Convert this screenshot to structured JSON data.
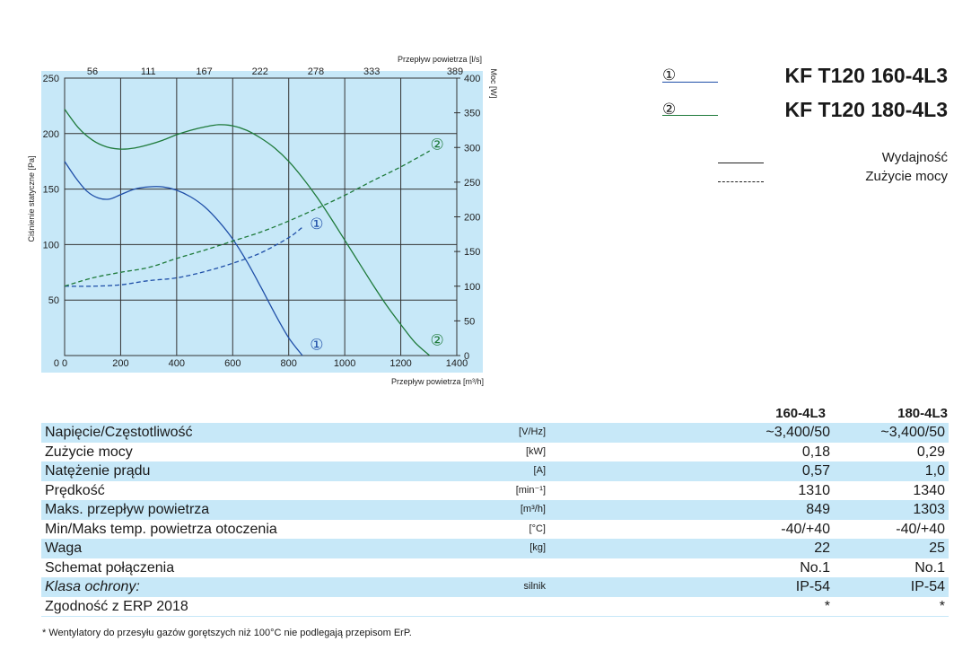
{
  "chart_data": {
    "type": "line",
    "x_unit_label": "Przepływ powietrza [m³/h]",
    "x_top_label": "Przepływ powietrza [l/s]",
    "y_left_label": "Ciśnienie statyczne [Pa]",
    "y_right_label": "Moc [W]",
    "xlim": [
      0,
      1400
    ],
    "ylim_left": [
      0,
      250
    ],
    "ylim_right": [
      0,
      400
    ],
    "x_ticks": [
      "0",
      "200",
      "400",
      "600",
      "800",
      "1000",
      "1200",
      "1400"
    ],
    "x_top_ticks": [
      "56",
      "111",
      "167",
      "222",
      "278",
      "333",
      "389"
    ],
    "y_left_ticks": [
      "50",
      "100",
      "150",
      "200",
      "250"
    ],
    "y_right_ticks": [
      "0",
      "50",
      "100",
      "150",
      "200",
      "250",
      "300",
      "350",
      "400"
    ],
    "series": [
      {
        "name": "①",
        "kind": "pressure",
        "color": "#1f4fa8",
        "x": [
          0,
          40,
          80,
          120,
          160,
          200,
          250,
          300,
          350,
          400,
          450,
          500,
          550,
          600,
          650,
          700,
          750,
          800,
          849
        ],
        "y": [
          175,
          160,
          148,
          142,
          141,
          145,
          150,
          152,
          152,
          149,
          143,
          134,
          121,
          105,
          85,
          62,
          38,
          16,
          0
        ]
      },
      {
        "name": "②",
        "kind": "pressure",
        "color": "#1e7a3a",
        "x": [
          0,
          50,
          100,
          150,
          200,
          250,
          300,
          350,
          400,
          450,
          500,
          550,
          600,
          650,
          700,
          750,
          800,
          850,
          900,
          950,
          1000,
          1050,
          1100,
          1150,
          1200,
          1250,
          1303
        ],
        "y": [
          222,
          205,
          194,
          188,
          186,
          187,
          190,
          194,
          199,
          203,
          206,
          208,
          207,
          203,
          196,
          187,
          175,
          160,
          143,
          124,
          104,
          84,
          64,
          45,
          28,
          12,
          0
        ]
      },
      {
        "name": "①",
        "kind": "power",
        "color": "#1f4fa8",
        "x": [
          0,
          100,
          200,
          300,
          400,
          500,
          600,
          700,
          800,
          849
        ],
        "y": [
          100,
          100,
          102,
          108,
          112,
          121,
          133,
          148,
          170,
          185
        ]
      },
      {
        "name": "②",
        "kind": "power",
        "color": "#1e7a3a",
        "x": [
          0,
          100,
          200,
          300,
          400,
          500,
          600,
          700,
          800,
          900,
          1000,
          1100,
          1200,
          1303
        ],
        "y": [
          100,
          112,
          120,
          127,
          140,
          152,
          165,
          178,
          194,
          212,
          231,
          252,
          272,
          295
        ]
      }
    ],
    "markers": [
      {
        "label": "①",
        "x": 900,
        "y_right": 190,
        "color": "#1f4fa8"
      },
      {
        "label": "①",
        "x": 900,
        "y_left": 10,
        "color": "#1f4fa8"
      },
      {
        "label": "②",
        "x": 1330,
        "y_right": 305,
        "color": "#1e7a3a"
      },
      {
        "label": "②",
        "x": 1330,
        "y_left": 14,
        "color": "#1e7a3a"
      }
    ],
    "grid": true,
    "background": "#c7e8f8"
  },
  "legend": {
    "series": [
      {
        "num": "①",
        "model": "KF T120 160-4L3",
        "color": "#1f4fa8"
      },
      {
        "num": "②",
        "model": "KF T120 180-4L3",
        "color": "#1e7a3a"
      }
    ],
    "kinds": [
      {
        "label": "Wydajność",
        "style": "solid"
      },
      {
        "label": "Zużycie mocy",
        "style": "dashed"
      }
    ]
  },
  "table": {
    "col1": "160-4L3",
    "col2": "180-4L3",
    "rows": [
      {
        "label": "Napięcie/Częstotliwość",
        "unit": "[V/Hz]",
        "v1": "~3,400/50",
        "v2": "~3,400/50",
        "italic": false
      },
      {
        "label": "Zużycie mocy",
        "unit": "[kW]",
        "v1": "0,18",
        "v2": "0,29",
        "italic": false
      },
      {
        "label": "Natężenie prądu",
        "unit": "[A]",
        "v1": "0,57",
        "v2": "1,0",
        "italic": false
      },
      {
        "label": "Prędkość",
        "unit": "[min⁻¹]",
        "v1": "1310",
        "v2": "1340",
        "italic": false
      },
      {
        "label": "Maks. przepływ powietrza",
        "unit": "[m³/h]",
        "v1": "849",
        "v2": "1303",
        "italic": false
      },
      {
        "label": "Min/Maks temp. powietrza otoczenia",
        "unit": "[°C]",
        "v1": "-40/+40",
        "v2": "-40/+40",
        "italic": false
      },
      {
        "label": "Waga",
        "unit": "[kg]",
        "v1": "22",
        "v2": "25",
        "italic": false
      },
      {
        "label": "Schemat połączenia",
        "unit": "",
        "v1": "No.1",
        "v2": "No.1",
        "italic": false
      },
      {
        "label": "Klasa ochrony:",
        "unit": "silnik",
        "v1": "IP-54",
        "v2": "IP-54",
        "italic": true
      },
      {
        "label": "Zgodność z ERP 2018",
        "unit": "",
        "v1": "*",
        "v2": "*",
        "italic": false
      }
    ]
  },
  "footnote": "* Wentylatory do przesyłu gazów gorętszych niż 100°C nie podlegają przepisom ErP."
}
